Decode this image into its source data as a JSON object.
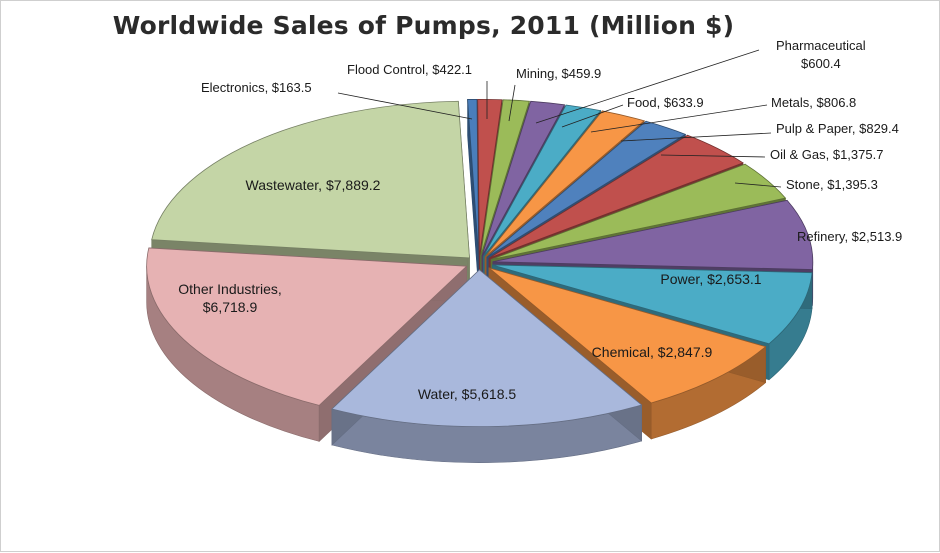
{
  "chart_data": {
    "type": "pie",
    "style": "3d-exploded",
    "title": "Worldwide Sales of Pumps, 2011 (Million $)",
    "slices": [
      {
        "category": "Electronics",
        "value": 163.5,
        "value_label": "$163.5",
        "color": "#4a7ebb",
        "label": "Electronics, $163.5"
      },
      {
        "category": "Flood Control",
        "value": 422.1,
        "value_label": "$422.1",
        "color": "#c0504d",
        "label": "Flood Control, $422.1"
      },
      {
        "category": "Mining",
        "value": 459.9,
        "value_label": "$459.9",
        "color": "#9bbb59",
        "label": "Mining, $459.9"
      },
      {
        "category": "Pharmaceutical",
        "value": 600.4,
        "value_label": "$600.4",
        "color": "#8064a2",
        "label": "Pharmaceutical, $600.4"
      },
      {
        "category": "Food",
        "value": 633.9,
        "value_label": "$633.9",
        "color": "#4bacc6",
        "label": "Food, $633.9"
      },
      {
        "category": "Metals",
        "value": 806.8,
        "value_label": "$806.8",
        "color": "#f79646",
        "label": "Metals, $806.8"
      },
      {
        "category": "Pulp & Paper",
        "value": 829.4,
        "value_label": "$829.4",
        "color": "#4f81bd",
        "label": "Pulp & Paper, $829.4"
      },
      {
        "category": "Oil & Gas",
        "value": 1375.7,
        "value_label": "$1,375.7",
        "color": "#c0504d",
        "label": "Oil & Gas, $1,375.7"
      },
      {
        "category": "Stone",
        "value": 1395.3,
        "value_label": "$1,395.3",
        "color": "#9bbb59",
        "label": "Stone, $1,395.3"
      },
      {
        "category": "Refinery",
        "value": 2513.9,
        "value_label": "$2,513.9",
        "color": "#8064a2",
        "label": "Refinery, $2,513.9"
      },
      {
        "category": "Power",
        "value": 2653.1,
        "value_label": "$2,653.1",
        "color": "#4bacc6",
        "label": "Power, $2,653.1"
      },
      {
        "category": "Chemical",
        "value": 2847.9,
        "value_label": "$2,847.9",
        "color": "#f79646",
        "label": "Chemical, $2,847.9"
      },
      {
        "category": "Water",
        "value": 5618.5,
        "value_label": "$5,618.5",
        "color": "#a9b8dc",
        "label": "Water, $5,618.5"
      },
      {
        "category": "Other Industries",
        "value": 6718.9,
        "value_label": "$6,718.9",
        "color": "#e6b2b3",
        "label": "Other Industries, $6,718.9"
      },
      {
        "category": "Wastewater",
        "value": 7889.2,
        "value_label": "$7,889.2",
        "color": "#c4d5a6",
        "label": "Wastewater, $7,889.2"
      }
    ]
  }
}
